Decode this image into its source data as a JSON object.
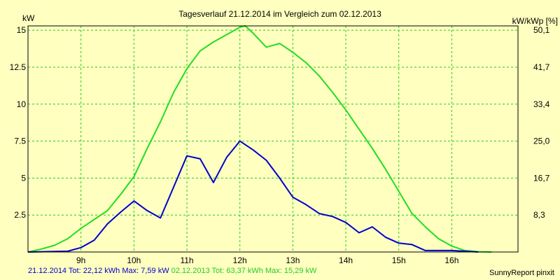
{
  "chart_data": {
    "type": "line",
    "title": "Tagesverlauf 21.12.2014 im Vergleich zum 02.12.2013",
    "ylabel_left": "kW",
    "ylabel_right": "kW/kWp [%]",
    "ylim": [
      0,
      15.29
    ],
    "xlim": [
      8.0,
      17.25
    ],
    "left_ticks": [
      {
        "value": 2.5,
        "label": "2.5"
      },
      {
        "value": 5,
        "label": "5"
      },
      {
        "value": 7.5,
        "label": "7.5"
      },
      {
        "value": 10,
        "label": "10"
      },
      {
        "value": 12.5,
        "label": "12.5"
      },
      {
        "value": 15,
        "label": "15"
      }
    ],
    "right_ticks": [
      {
        "value": 2.5,
        "label": "8,3"
      },
      {
        "value": 5,
        "label": "16,7"
      },
      {
        "value": 7.5,
        "label": "25,0"
      },
      {
        "value": 10,
        "label": "33,4"
      },
      {
        "value": 12.5,
        "label": "41,7"
      },
      {
        "value": 15,
        "label": "50,1"
      }
    ],
    "x_ticks": [
      {
        "value": 9,
        "label": "9h"
      },
      {
        "value": 10,
        "label": "10h"
      },
      {
        "value": 11,
        "label": "11h"
      },
      {
        "value": 12,
        "label": "12h"
      },
      {
        "value": 13,
        "label": "13h"
      },
      {
        "value": 14,
        "label": "14h"
      },
      {
        "value": 15,
        "label": "15h"
      },
      {
        "value": 16,
        "label": "16h"
      }
    ],
    "series": [
      {
        "name": "21.12.2014",
        "color": "#0000cc",
        "x": [
          8.0,
          8.75,
          9.0,
          9.25,
          9.5,
          9.75,
          10.0,
          10.25,
          10.5,
          10.75,
          11.0,
          11.25,
          11.5,
          11.75,
          12.0,
          12.25,
          12.5,
          12.75,
          13.0,
          13.25,
          13.5,
          13.75,
          14.0,
          14.25,
          14.5,
          14.75,
          15.0,
          15.25,
          15.5,
          15.75,
          16.0,
          16.25,
          16.5
        ],
        "values": [
          0,
          0.05,
          0.3,
          0.8,
          1.9,
          2.7,
          3.45,
          2.8,
          2.3,
          4.4,
          6.5,
          6.3,
          4.7,
          6.4,
          7.5,
          6.9,
          6.2,
          5.0,
          3.7,
          3.2,
          2.6,
          2.4,
          2.0,
          1.3,
          1.7,
          1.0,
          0.6,
          0.5,
          0.1,
          0.1,
          0.1,
          0.05,
          0
        ]
      },
      {
        "name": "02.12.2013",
        "color": "#22dd22",
        "x": [
          8.0,
          8.25,
          8.5,
          8.75,
          9.0,
          9.25,
          9.5,
          9.75,
          10.0,
          10.25,
          10.5,
          10.75,
          11.0,
          11.25,
          11.5,
          11.75,
          12.0,
          12.1,
          12.25,
          12.5,
          12.75,
          13.0,
          13.25,
          13.5,
          13.75,
          14.0,
          14.25,
          14.5,
          14.75,
          15.0,
          15.25,
          15.5,
          15.75,
          16.0,
          16.25,
          16.5,
          16.75
        ],
        "values": [
          0,
          0.2,
          0.45,
          0.9,
          1.6,
          2.2,
          2.8,
          3.9,
          5.1,
          7.0,
          8.8,
          10.8,
          12.4,
          13.6,
          14.2,
          14.7,
          15.2,
          15.29,
          14.8,
          13.85,
          14.1,
          13.5,
          12.8,
          11.9,
          10.8,
          9.6,
          8.3,
          7.0,
          5.6,
          4.1,
          2.6,
          1.7,
          0.9,
          0.4,
          0.1,
          0.02,
          0
        ]
      }
    ]
  },
  "footer": {
    "series1": "21.12.2014 Tot: 22,12 kWh Max: 7,59 kW",
    "series2": "02.12.2013 Tot: 63,37 kWh Max: 15,29 kW",
    "credit": "SunnyReport pinxit"
  },
  "colors": {
    "background": "#ffffc0",
    "grid": "#22cc22",
    "series1": "#0000cc",
    "series2": "#22dd22"
  }
}
